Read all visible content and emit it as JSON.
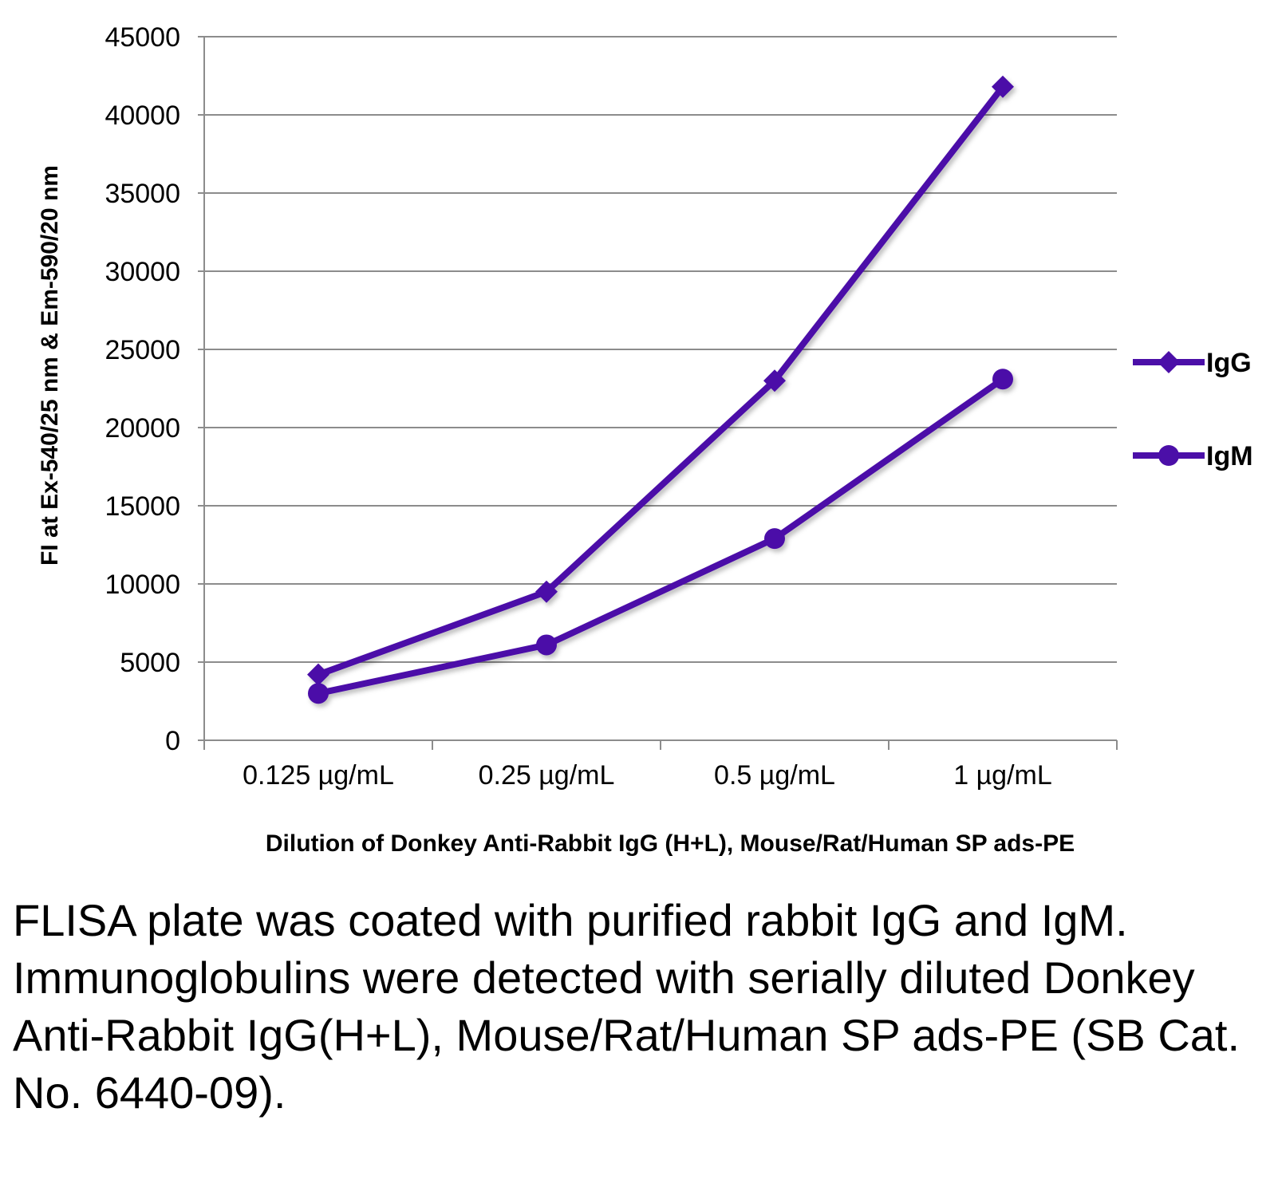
{
  "chart_data": {
    "type": "line",
    "categories": [
      "0.125 µg/mL",
      "0.25 µg/mL",
      "0.5 µg/mL",
      "1 µg/mL"
    ],
    "series": [
      {
        "name": "IgG",
        "marker": "diamond",
        "values": [
          4200,
          9500,
          23000,
          41800
        ]
      },
      {
        "name": "IgM",
        "marker": "circle",
        "values": [
          3000,
          6100,
          12900,
          23100
        ]
      }
    ],
    "yticks": [
      "0",
      "5000",
      "10000",
      "15000",
      "20000",
      "25000",
      "30000",
      "35000",
      "40000",
      "45000"
    ],
    "ylim": [
      0,
      45000
    ],
    "xlabel": "Dilution of Donkey Anti-Rabbit IgG (H+L), Mouse/Rat/Human SP ads-PE",
    "ylabel": "FI at Ex-540/25 nm & Em-590/20 nm",
    "grid": true,
    "legend_position": "right",
    "line_color": "#4B0FA8"
  },
  "caption": "FLISA plate was coated with purified rabbit IgG and IgM.  Immunoglobulins were detected with serially diluted Donkey Anti-Rabbit IgG(H+L), Mouse/Rat/Human SP ads-PE (SB Cat. No. 6440-09)."
}
